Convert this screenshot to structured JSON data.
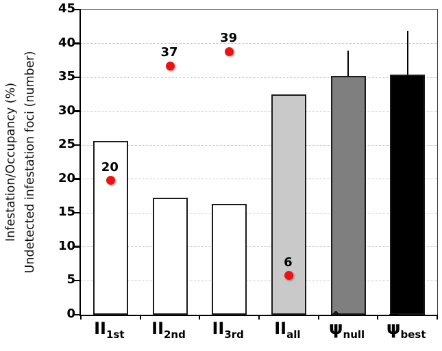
{
  "chart_data": {
    "type": "bar",
    "title": "",
    "ylabel_line1": "Infestation/Occupancy (%)",
    "ylabel_line2": "Undetected infestation foci (number)",
    "xlabel": "",
    "ylim": [
      0,
      45
    ],
    "ytick_interval": 5,
    "yticks": [
      0,
      5,
      10,
      15,
      20,
      25,
      30,
      35,
      40,
      45
    ],
    "grid": "horizontal dotted gridlines every 5 units",
    "legend": "none",
    "categories": [
      {
        "base": "II",
        "accent": "",
        "sub": "1st"
      },
      {
        "base": "II",
        "accent": "",
        "sub": "2nd"
      },
      {
        "base": "II",
        "accent": "",
        "sub": "3rd"
      },
      {
        "base": "II",
        "accent": "",
        "sub": "all"
      },
      {
        "base": "ψ",
        "accent": "ˆ",
        "sub": "null"
      },
      {
        "base": "ψ",
        "accent": "¯",
        "sub": "best"
      }
    ],
    "series": [
      {
        "name": "Infestation/Occupancy (%)",
        "type": "bar",
        "values": [
          25.6,
          17.3,
          16.3,
          32.5,
          35.2,
          35.4
        ],
        "error_upper": [
          null,
          null,
          null,
          null,
          3.7,
          6.5
        ],
        "fills": [
          "#ffffff",
          "#ffffff",
          "#ffffff",
          "#c9c9c9",
          "#7f7f7f",
          "#000000"
        ]
      },
      {
        "name": "Undetected infestation foci (number)",
        "type": "scatter",
        "points": [
          {
            "category_index": 0,
            "y": 19.8,
            "label": "20"
          },
          {
            "category_index": 1,
            "y": 36.7,
            "label": "37"
          },
          {
            "category_index": 2,
            "y": 38.8,
            "label": "39"
          },
          {
            "category_index": 3,
            "y": 5.8,
            "label": "6"
          }
        ]
      }
    ],
    "colors": {
      "marker": "#ee1111",
      "bar_border": "#1a1a1a",
      "axis": "#000000",
      "frame": "#3c3c3c",
      "gridline": "#bdbdbd",
      "background": "#ffffff"
    }
  }
}
